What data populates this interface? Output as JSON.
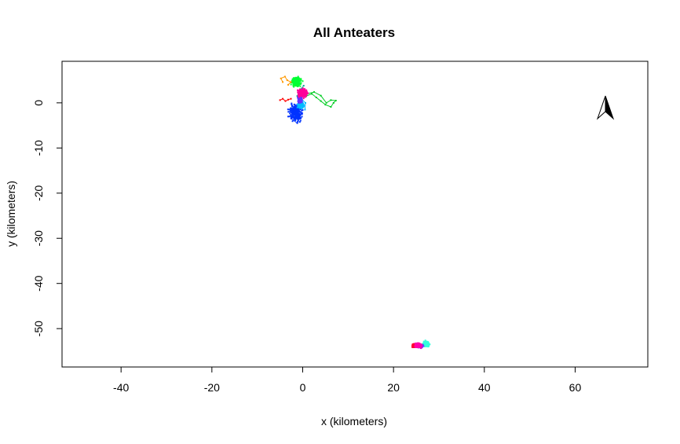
{
  "chart_data": {
    "type": "scatter",
    "title": "All Anteaters",
    "xlabel": "x (kilometers)",
    "ylabel": "y (kilometers)",
    "xlim": [
      -53,
      76
    ],
    "ylim": [
      -58.5,
      9.2
    ],
    "x_ticks": [
      -40,
      -20,
      0,
      20,
      40,
      60
    ],
    "y_ticks": [
      0,
      -10,
      -20,
      -30,
      -40,
      -50
    ],
    "grid": false,
    "legend": "none",
    "north_arrow": true,
    "series": [
      {
        "color": "#0033ff",
        "cluster": "north",
        "kind": "cloud",
        "center": [
          -1.5,
          -2.2
        ],
        "spread": [
          1.3,
          1.6
        ],
        "count": 260,
        "path": [
          [
            -1.5,
            -2.2
          ],
          [
            -2.5,
            -3.5
          ],
          [
            -1.2,
            -4.5
          ],
          [
            -0.8,
            -3.2
          ],
          [
            -2.2,
            -1.5
          ],
          [
            -1.0,
            -0.8
          ]
        ]
      },
      {
        "color": "#00ff33",
        "cluster": "north",
        "kind": "cloud",
        "center": [
          -1.5,
          4.6
        ],
        "spread": [
          0.9,
          0.9
        ],
        "count": 200,
        "path": [
          [
            -2.0,
            5.5
          ],
          [
            -1.0,
            4.0
          ],
          [
            -2.5,
            4.5
          ],
          [
            -1.0,
            5.8
          ],
          [
            0.0,
            4.8
          ]
        ]
      },
      {
        "color": "#00cc22",
        "cluster": "north",
        "kind": "track",
        "path": [
          [
            0.8,
            1.5
          ],
          [
            2.0,
            2.0
          ],
          [
            3.0,
            1.2
          ],
          [
            4.0,
            0.4
          ],
          [
            5.0,
            -0.4
          ],
          [
            6.2,
            -0.9
          ],
          [
            6.8,
            0.0
          ],
          [
            7.3,
            0.5
          ],
          [
            6.2,
            0.6
          ],
          [
            5.2,
            0.0
          ],
          [
            4.0,
            1.6
          ],
          [
            2.5,
            2.4
          ],
          [
            1.0,
            2.0
          ]
        ]
      },
      {
        "color": "#ff9900",
        "cluster": "north",
        "kind": "track",
        "path": [
          [
            -4.4,
            4.6
          ],
          [
            -4.8,
            5.4
          ],
          [
            -3.9,
            5.8
          ],
          [
            -3.4,
            5.0
          ],
          [
            -2.6,
            4.6
          ],
          [
            -3.2,
            4.0
          ]
        ]
      },
      {
        "color": "#ff0000",
        "cluster": "north",
        "kind": "track",
        "path": [
          [
            -5.0,
            0.6
          ],
          [
            -4.4,
            0.9
          ],
          [
            -3.8,
            0.4
          ],
          [
            -3.2,
            0.7
          ],
          [
            -2.6,
            0.9
          ]
        ]
      },
      {
        "color": "#00bbff",
        "cluster": "north",
        "kind": "cloud",
        "center": [
          -0.4,
          -0.4
        ],
        "spread": [
          0.6,
          0.9
        ],
        "count": 90,
        "path": [
          [
            0.5,
            -1.5
          ],
          [
            0.6,
            0.0
          ],
          [
            -0.2,
            0.8
          ]
        ]
      },
      {
        "color": "#6633ff",
        "cluster": "north",
        "kind": "cloud",
        "center": [
          -0.6,
          0.6
        ],
        "spread": [
          0.5,
          0.8
        ],
        "count": 80,
        "path": [
          [
            -0.8,
            0.0
          ],
          [
            -0.4,
            1.2
          ]
        ]
      },
      {
        "color": "#00aa99",
        "cluster": "north",
        "kind": "track",
        "path": [
          [
            -1.2,
            1.5
          ],
          [
            -0.8,
            2.4
          ],
          [
            -0.2,
            3.2
          ],
          [
            0.2,
            3.8
          ]
        ]
      },
      {
        "color": "#ff0099",
        "cluster": "north",
        "kind": "cloud",
        "center": [
          0.0,
          2.2
        ],
        "spread": [
          0.9,
          0.7
        ],
        "count": 320,
        "path": [
          [
            -0.8,
            1.6
          ],
          [
            0.8,
            2.8
          ],
          [
            0.2,
            1.0
          ],
          [
            -0.6,
            3.0
          ]
        ]
      },
      {
        "color": "#33ffdd",
        "cluster": "south",
        "kind": "cloud",
        "center": [
          27.2,
          -53.4
        ],
        "spread": [
          0.55,
          0.55
        ],
        "count": 200,
        "path": [
          [
            26.8,
            -53.0
          ],
          [
            27.6,
            -53.8
          ],
          [
            27.3,
            -52.9
          ]
        ]
      },
      {
        "color": "#6633ff",
        "cluster": "south",
        "kind": "cloud",
        "center": [
          26.0,
          -53.9
        ],
        "spread": [
          0.45,
          0.35
        ],
        "count": 110,
        "path": [
          [
            25.5,
            -54.2
          ],
          [
            26.5,
            -53.6
          ]
        ]
      },
      {
        "color": "#ff0033",
        "cluster": "south",
        "kind": "cloud",
        "center": [
          24.5,
          -53.8
        ],
        "spread": [
          0.4,
          0.35
        ],
        "count": 120,
        "path": [
          [
            24.2,
            -53.5
          ],
          [
            24.9,
            -54.1
          ]
        ]
      },
      {
        "color": "#ff00aa",
        "cluster": "south",
        "kind": "cloud",
        "center": [
          25.4,
          -53.7
        ],
        "spread": [
          0.55,
          0.4
        ],
        "count": 300,
        "path": [
          [
            24.8,
            -53.3
          ],
          [
            25.9,
            -54.1
          ],
          [
            25.2,
            -53.9
          ]
        ]
      }
    ]
  }
}
